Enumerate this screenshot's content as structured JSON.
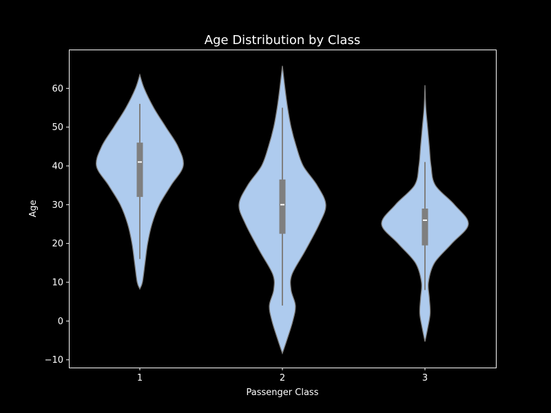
{
  "chart_data": {
    "type": "violin",
    "title": "Age Distribution by Class",
    "xlabel": "Passenger Class",
    "ylabel": "Age",
    "categories": [
      "1",
      "2",
      "3"
    ],
    "ylim": [
      -12,
      70
    ],
    "yticks": [
      -10,
      0,
      10,
      20,
      30,
      40,
      50,
      60
    ],
    "ytick_labels": [
      "−10",
      "0",
      "10",
      "20",
      "30",
      "40",
      "50",
      "60"
    ],
    "grid": false,
    "colors": {
      "background": "#000000",
      "violin_fill": "#aecbee",
      "violin_edge": "#7f7f7f",
      "box": "#7f7f7f",
      "median": "#ffffff",
      "axes_edge": "#ffffff",
      "text": "#ffffff"
    },
    "violins": [
      {
        "category": "1",
        "min": 16,
        "q1": 32,
        "median": 41,
        "q3": 46,
        "max": 56,
        "density": [
          {
            "y": 8.3,
            "w": 0.0
          },
          {
            "y": 10,
            "w": 0.06
          },
          {
            "y": 15,
            "w": 0.12
          },
          {
            "y": 20,
            "w": 0.18
          },
          {
            "y": 25,
            "w": 0.28
          },
          {
            "y": 30,
            "w": 0.45
          },
          {
            "y": 35,
            "w": 0.72
          },
          {
            "y": 40,
            "w": 1.0
          },
          {
            "y": 45,
            "w": 0.88
          },
          {
            "y": 50,
            "w": 0.6
          },
          {
            "y": 55,
            "w": 0.32
          },
          {
            "y": 60,
            "w": 0.1
          },
          {
            "y": 63.5,
            "w": 0.0
          }
        ]
      },
      {
        "category": "2",
        "min": 4,
        "q1": 22.5,
        "median": 30,
        "q3": 36.5,
        "max": 55,
        "density": [
          {
            "y": -8.3,
            "w": 0.0
          },
          {
            "y": -5,
            "w": 0.1
          },
          {
            "y": 0,
            "w": 0.24
          },
          {
            "y": 4,
            "w": 0.3
          },
          {
            "y": 8,
            "w": 0.2
          },
          {
            "y": 12,
            "w": 0.22
          },
          {
            "y": 18,
            "w": 0.52
          },
          {
            "y": 25,
            "w": 0.85
          },
          {
            "y": 30,
            "w": 1.0
          },
          {
            "y": 35,
            "w": 0.8
          },
          {
            "y": 40,
            "w": 0.48
          },
          {
            "y": 45,
            "w": 0.32
          },
          {
            "y": 50,
            "w": 0.2
          },
          {
            "y": 55,
            "w": 0.12
          },
          {
            "y": 60,
            "w": 0.06
          },
          {
            "y": 65.8,
            "w": 0.0
          }
        ]
      },
      {
        "category": "3",
        "min": 8,
        "q1": 19.5,
        "median": 26,
        "q3": 29,
        "max": 41,
        "density": [
          {
            "y": -5.3,
            "w": 0.0
          },
          {
            "y": -2,
            "w": 0.06
          },
          {
            "y": 2,
            "w": 0.12
          },
          {
            "y": 6,
            "w": 0.1
          },
          {
            "y": 10,
            "w": 0.08
          },
          {
            "y": 15,
            "w": 0.22
          },
          {
            "y": 20,
            "w": 0.62
          },
          {
            "y": 25,
            "w": 1.0
          },
          {
            "y": 30,
            "w": 0.68
          },
          {
            "y": 35,
            "w": 0.24
          },
          {
            "y": 40,
            "w": 0.14
          },
          {
            "y": 45,
            "w": 0.1
          },
          {
            "y": 50,
            "w": 0.06
          },
          {
            "y": 55,
            "w": 0.02
          },
          {
            "y": 60.8,
            "w": 0.0
          }
        ]
      }
    ]
  }
}
